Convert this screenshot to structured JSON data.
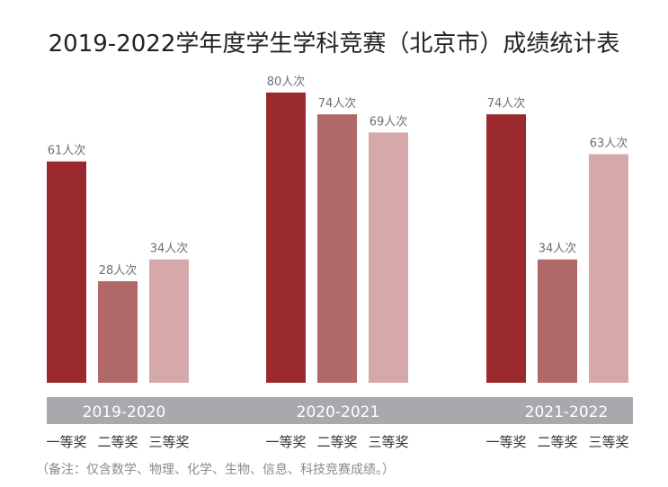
{
  "chart_data": {
    "type": "bar",
    "title": "2019-2022学年度学生学科竞赛（北京市）成绩统计表",
    "categories": [
      "2019-2020",
      "2020-2021",
      "2021-2022"
    ],
    "series": [
      {
        "name": "一等奖",
        "values": [
          61,
          80,
          74
        ],
        "color": "#9b2a2e"
      },
      {
        "name": "二等奖",
        "values": [
          28,
          74,
          34
        ],
        "color": "#b06868"
      },
      {
        "name": "三等奖",
        "values": [
          34,
          69,
          63
        ],
        "color": "#d5a9aa"
      }
    ],
    "value_suffix": "人次",
    "ylim": [
      0,
      80
    ],
    "grid": false,
    "band_color": "#a9a9ad",
    "note": "（备注：仅含数学、物理、化学、生物、信息、科技竞赛成绩。）"
  }
}
